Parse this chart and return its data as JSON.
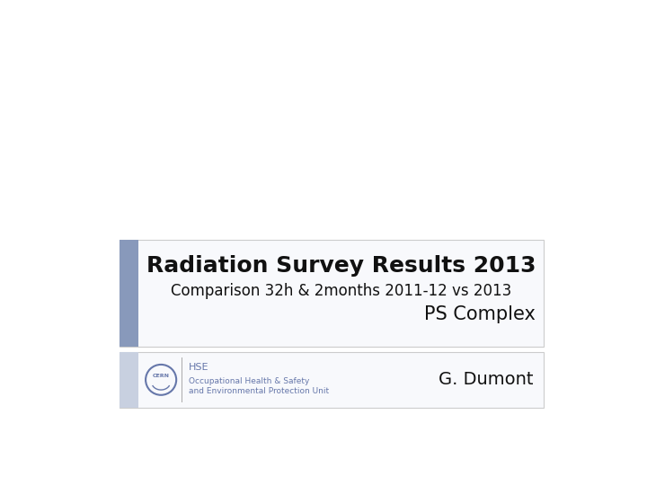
{
  "bg_color": "#ffffff",
  "title_line1": "Radiation Survey Results 2013",
  "title_line2": "Comparison 32h & 2months 2011-12 vs 2013",
  "title_line3": "PS Complex",
  "author": "G. Dumont",
  "hse_line1": "HSE",
  "hse_line2": "Occupational Health & Safety",
  "hse_line3": "and Environmental Protection Unit",
  "accent_color": "#8899bb",
  "accent_color_light": "#c8d0e0",
  "box_bg_color": "#f8f9fc",
  "border_color": "#cccccc",
  "title_fontsize": 18,
  "subtitle_fontsize": 12,
  "ps_fontsize": 15,
  "author_fontsize": 14,
  "hse_title_fontsize": 8,
  "hse_body_fontsize": 6.5,
  "text_color": "#111111",
  "hse_color": "#6677aa"
}
